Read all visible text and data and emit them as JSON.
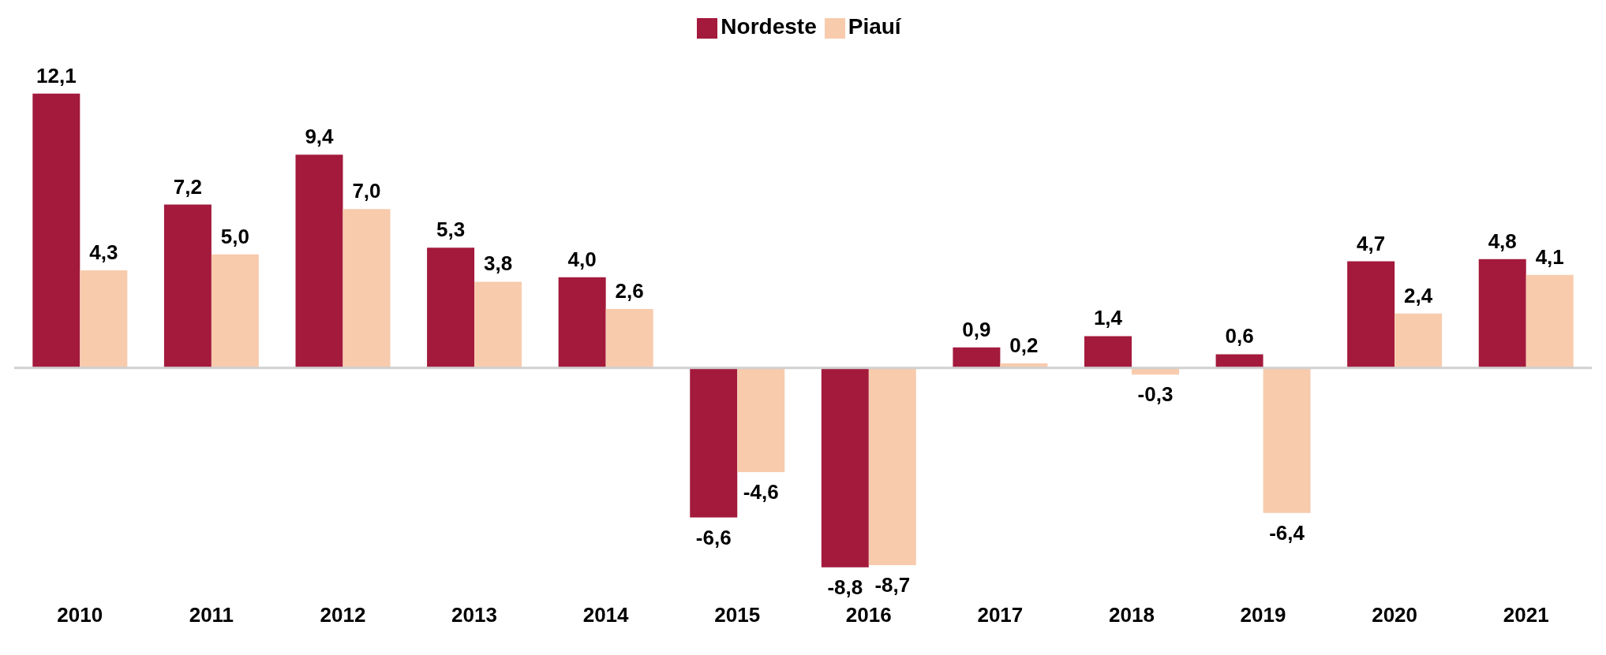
{
  "chart_data": {
    "type": "bar",
    "categories": [
      "2010",
      "2011",
      "2012",
      "2013",
      "2014",
      "2015",
      "2016",
      "2017",
      "2018",
      "2019",
      "2020",
      "2021"
    ],
    "series": [
      {
        "name": "Nordeste",
        "color": "#a31a3c",
        "values": [
          12.1,
          7.2,
          9.4,
          5.3,
          4.0,
          -6.6,
          -8.8,
          0.9,
          1.4,
          0.6,
          4.7,
          4.8
        ],
        "value_labels": [
          "12,1",
          "7,2",
          "9,4",
          "5,3",
          "4,0",
          "-6,6",
          "-8,8",
          "0,9",
          "1,4",
          "0,6",
          "4,7",
          "4,8"
        ]
      },
      {
        "name": "Piauí",
        "color": "#f8cbad",
        "values": [
          4.3,
          5.0,
          7.0,
          3.8,
          2.6,
          -4.6,
          -8.7,
          0.2,
          -0.3,
          -6.4,
          2.4,
          4.1
        ],
        "value_labels": [
          "4,3",
          "5,0",
          "7,0",
          "3,8",
          "2,6",
          "-4,6",
          "-8,7",
          "0,2",
          "-0,3",
          "-6,4",
          "2,4",
          "4,1"
        ]
      }
    ],
    "legend": "top"
  }
}
